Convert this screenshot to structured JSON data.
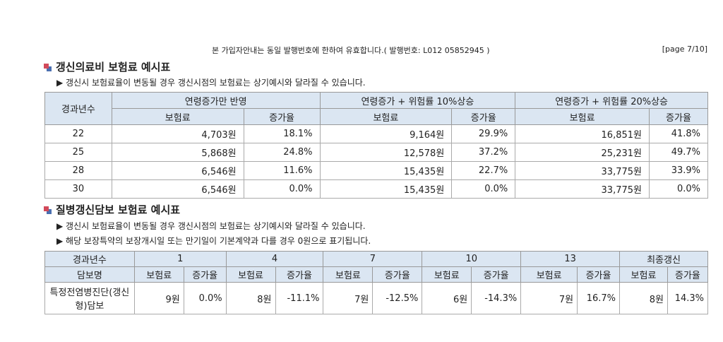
{
  "header": {
    "notice": "본 가입자안내는 동일 발행번호에 한하여 유효합니다.( 발행번호: L012 05852945 )",
    "page": "[page 7/10]"
  },
  "section1": {
    "title": "갱신의료비 보험료 예시표",
    "notes": [
      "갱신시 보험료율이 변동될 경우 갱신시점의 보험료는 상기예시와 달라질 수 있습니다."
    ],
    "table": {
      "header_top": [
        "경과년수",
        "연령증가만 반영",
        "연령증가 + 위험률 10%상승",
        "연령증가 + 위험률 20%상승"
      ],
      "header_sub": [
        "보험료",
        "증가율",
        "보험료",
        "증가율",
        "보험료",
        "증가율"
      ],
      "rows": [
        [
          "22",
          "4,703원",
          "18.1%",
          "9,164원",
          "29.9%",
          "16,851원",
          "41.8%"
        ],
        [
          "25",
          "5,868원",
          "24.8%",
          "12,578원",
          "37.2%",
          "25,231원",
          "49.7%"
        ],
        [
          "28",
          "6,546원",
          "11.6%",
          "15,435원",
          "22.7%",
          "33,775원",
          "33.9%"
        ],
        [
          "30",
          "6,546원",
          "0.0%",
          "15,435원",
          "0.0%",
          "33,775원",
          "0.0%"
        ]
      ]
    }
  },
  "section2": {
    "title": "질병갱신담보 보험료 예시표",
    "notes": [
      "갱신시 보험료율이 변동될 경우 갱신시점의 보험료는 상기예시와 달라질 수 있습니다.",
      "해당 보장특약의 보장개시일 또는 만기일이 기본계약과 다를 경우 0원으로 표기됩니다."
    ],
    "table": {
      "header_top": [
        "경과년수",
        "1",
        "4",
        "7",
        "10",
        "13",
        "최종갱신"
      ],
      "header_sub": [
        "담보명",
        "보험료",
        "증가율",
        "보험료",
        "증가율",
        "보험료",
        "증가율",
        "보험료",
        "증가율",
        "보험료",
        "증가율",
        "보험료",
        "증가율"
      ],
      "rows": [
        [
          "특정전염병진단(갱신형)담보",
          "9원",
          "0.0%",
          "8원",
          "-11.1%",
          "7원",
          "-12.5%",
          "6원",
          "-14.3%",
          "7원",
          "16.7%",
          "8원",
          "14.3%"
        ]
      ]
    }
  }
}
